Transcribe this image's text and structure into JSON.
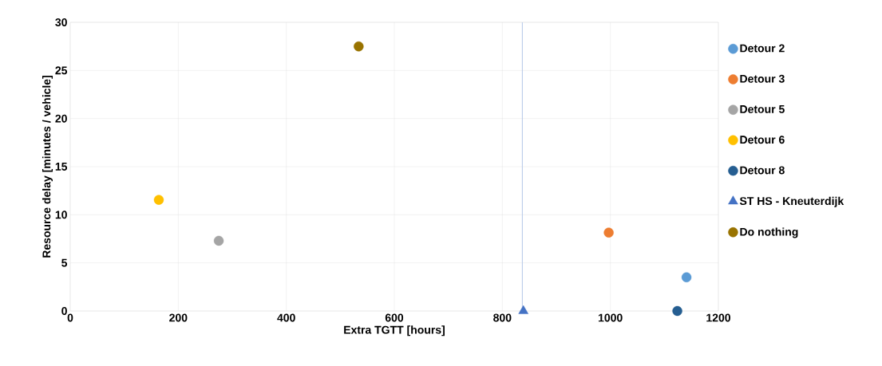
{
  "chart_data": {
    "type": "scatter",
    "xlabel": "Extra TGTT [hours]",
    "ylabel": "Resource delay [minutes / vehicle]",
    "xlim": [
      0,
      1200
    ],
    "xticks": [
      0,
      200,
      400,
      600,
      800,
      1000,
      1200
    ],
    "ylim": [
      0,
      30
    ],
    "yticks": [
      0,
      5,
      10,
      15,
      20,
      25,
      30
    ],
    "grid": true,
    "legend": "right",
    "marker": "circle",
    "ref_lines": [
      {
        "axis": "x",
        "value": 837,
        "color": "#b4c7e7"
      }
    ],
    "series": [
      {
        "name": "Detour 2",
        "color": "#5b9bd5",
        "x": [
          1141
        ],
        "values": [
          3.5
        ]
      },
      {
        "name": "Detour 3",
        "color": "#ed7d31",
        "x": [
          997
        ],
        "values": [
          8.15
        ]
      },
      {
        "name": "Detour 5",
        "color": "#a5a5a5",
        "x": [
          275
        ],
        "values": [
          7.3
        ]
      },
      {
        "name": "Detour 6",
        "color": "#ffc000",
        "x": [
          164
        ],
        "values": [
          11.55
        ]
      },
      {
        "name": "Detour 8",
        "color": "#255e91",
        "x": [
          1124
        ],
        "values": [
          0
        ]
      },
      {
        "name": "ST HS - Kneuterdijk",
        "color": "#4472c4",
        "marker": "triangle",
        "x": [
          839
        ],
        "values": [
          0
        ]
      },
      {
        "name": "Do nothing",
        "color": "#997300",
        "x": [
          534
        ],
        "values": [
          27.5
        ]
      }
    ]
  }
}
